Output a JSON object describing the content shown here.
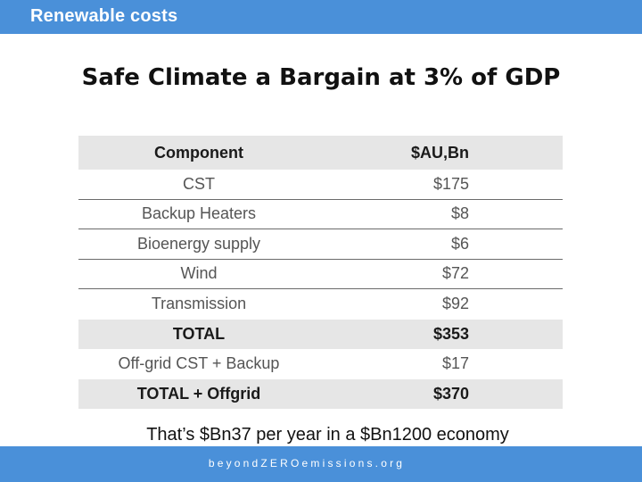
{
  "header": {
    "title": "Renewable costs"
  },
  "slide": {
    "title": "Safe Climate a Bargain at 3% of GDP"
  },
  "table": {
    "columns": [
      "Component",
      "$AU,Bn"
    ],
    "rows": [
      {
        "component": "CST",
        "value": "$175"
      },
      {
        "component": "Backup Heaters",
        "value": "$8"
      },
      {
        "component": "Bioenergy supply",
        "value": "$6"
      },
      {
        "component": "Wind",
        "value": "$72"
      },
      {
        "component": "Transmission",
        "value": "$92"
      },
      {
        "component": "TOTAL",
        "value": "$353"
      },
      {
        "component": "Off-grid CST + Backup",
        "value": "$17"
      },
      {
        "component": "TOTAL + Offgrid",
        "value": "$370"
      }
    ]
  },
  "summary": {
    "text": "That’s $Bn37 per year in a $Bn1200 economy"
  },
  "footer": {
    "text": "beyondZEROemissions.org"
  },
  "colors": {
    "accent": "#4a90d9",
    "table_shade": "#e6e6e6"
  }
}
